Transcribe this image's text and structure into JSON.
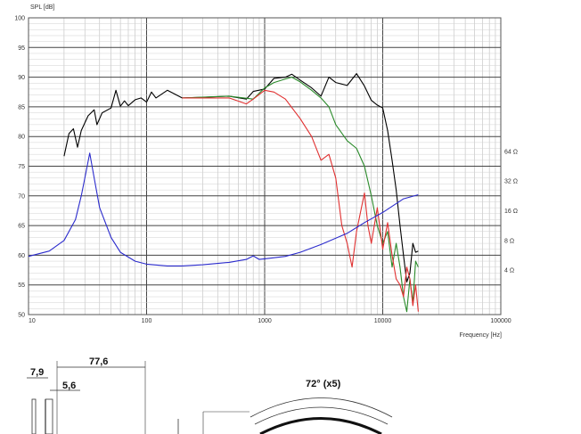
{
  "chart_data": {
    "type": "line",
    "title": "",
    "xlabel": "Frequency [Hz]",
    "ylabel": "SPL [dB]",
    "x_scale": "log",
    "xlim": [
      10,
      100000
    ],
    "ylim": [
      50,
      100
    ],
    "grid": true,
    "x_tick_labels": [
      "10",
      "100",
      "1000",
      "10000",
      "100000"
    ],
    "x_tick_values": [
      10,
      100,
      1000,
      10000,
      100000
    ],
    "y_tick_values": [
      50,
      55,
      60,
      65,
      70,
      75,
      80,
      85,
      90,
      95,
      100
    ],
    "y_tick_labels": [
      "50",
      "55",
      "60",
      "65",
      "70",
      "75",
      "80",
      "85",
      "90",
      "95",
      "100"
    ],
    "right_axis": {
      "label_values": [
        4,
        8,
        16,
        32,
        64
      ],
      "labels": [
        "4 Ω",
        "8 Ω",
        "16 Ω",
        "32 Ω",
        "64 Ω"
      ]
    },
    "series": [
      {
        "color": "#000000",
        "points": [
          [
            20,
            76.7
          ],
          [
            22,
            80.5
          ],
          [
            24,
            81.3
          ],
          [
            26,
            78.2
          ],
          [
            28,
            81
          ],
          [
            32,
            83.5
          ],
          [
            36,
            84.5
          ],
          [
            38,
            82
          ],
          [
            42,
            84
          ],
          [
            50,
            84.8
          ],
          [
            55,
            87.8
          ],
          [
            60,
            85.1
          ],
          [
            65,
            86
          ],
          [
            70,
            85.2
          ],
          [
            80,
            86.2
          ],
          [
            90,
            86.5
          ],
          [
            100,
            85.8
          ],
          [
            110,
            87.5
          ],
          [
            120,
            86.5
          ],
          [
            150,
            87.8
          ],
          [
            200,
            86.5
          ],
          [
            300,
            86.6
          ],
          [
            500,
            86.8
          ],
          [
            700,
            86.3
          ],
          [
            800,
            87.6
          ],
          [
            1000,
            88
          ],
          [
            1200,
            89.8
          ],
          [
            1500,
            90
          ],
          [
            1700,
            90.5
          ],
          [
            2000,
            89.5
          ],
          [
            2500,
            88.2
          ],
          [
            3000,
            86.8
          ],
          [
            3500,
            90
          ],
          [
            4000,
            89.1
          ],
          [
            5000,
            88.6
          ],
          [
            6000,
            90.6
          ],
          [
            7000,
            88.5
          ],
          [
            8000,
            86.1
          ],
          [
            9000,
            85.3
          ],
          [
            10000,
            84.8
          ],
          [
            11000,
            81
          ],
          [
            12000,
            76
          ],
          [
            13000,
            71
          ],
          [
            14000,
            65
          ],
          [
            15000,
            60
          ],
          [
            16000,
            55.5
          ],
          [
            17000,
            57
          ],
          [
            18000,
            62
          ],
          [
            19000,
            60.5
          ],
          [
            20000,
            60.7
          ]
        ]
      },
      {
        "color": "#2a8a2a",
        "points": [
          [
            200,
            86.5
          ],
          [
            500,
            86.8
          ],
          [
            800,
            86.3
          ],
          [
            1000,
            88.2
          ],
          [
            1200,
            89.1
          ],
          [
            1500,
            89.7
          ],
          [
            1700,
            90
          ],
          [
            2000,
            89.2
          ],
          [
            2500,
            87.8
          ],
          [
            3000,
            86.5
          ],
          [
            3500,
            85
          ],
          [
            4000,
            82
          ],
          [
            5000,
            79.3
          ],
          [
            6000,
            78
          ],
          [
            7000,
            75
          ],
          [
            8000,
            70
          ],
          [
            9000,
            65
          ],
          [
            10000,
            62
          ],
          [
            11000,
            64
          ],
          [
            12000,
            58
          ],
          [
            13000,
            62
          ],
          [
            14000,
            58
          ],
          [
            15000,
            53
          ],
          [
            16000,
            50.5
          ],
          [
            17000,
            56
          ],
          [
            18000,
            52
          ],
          [
            19000,
            59
          ],
          [
            20000,
            58
          ]
        ]
      },
      {
        "color": "#e03030",
        "points": [
          [
            200,
            86.5
          ],
          [
            500,
            86.5
          ],
          [
            700,
            85.5
          ],
          [
            800,
            86.3
          ],
          [
            1000,
            87.8
          ],
          [
            1200,
            87.5
          ],
          [
            1500,
            86.3
          ],
          [
            2000,
            83
          ],
          [
            2500,
            80
          ],
          [
            3000,
            76
          ],
          [
            3500,
            77
          ],
          [
            4000,
            73
          ],
          [
            4500,
            65
          ],
          [
            5000,
            62
          ],
          [
            5500,
            58
          ],
          [
            6000,
            64
          ],
          [
            7000,
            70.5
          ],
          [
            7500,
            65
          ],
          [
            8000,
            62
          ],
          [
            9000,
            68
          ],
          [
            10000,
            61
          ],
          [
            11000,
            65.5
          ],
          [
            12000,
            60
          ],
          [
            13000,
            56
          ],
          [
            14000,
            55
          ],
          [
            15000,
            53
          ],
          [
            16000,
            58
          ],
          [
            17000,
            56
          ],
          [
            18000,
            51.5
          ],
          [
            19000,
            55
          ],
          [
            20000,
            50.5
          ]
        ]
      },
      {
        "color": "#2a2acc",
        "points": [
          [
            10,
            59.8
          ],
          [
            15,
            60.7
          ],
          [
            20,
            62.5
          ],
          [
            25,
            66
          ],
          [
            28,
            70
          ],
          [
            30,
            73
          ],
          [
            33,
            77.2
          ],
          [
            36,
            73
          ],
          [
            40,
            68
          ],
          [
            50,
            63
          ],
          [
            60,
            60.5
          ],
          [
            80,
            59
          ],
          [
            100,
            58.5
          ],
          [
            150,
            58.2
          ],
          [
            200,
            58.2
          ],
          [
            300,
            58.4
          ],
          [
            500,
            58.8
          ],
          [
            700,
            59.3
          ],
          [
            800,
            59.9
          ],
          [
            900,
            59.3
          ],
          [
            1000,
            59.4
          ],
          [
            1500,
            59.8
          ],
          [
            2000,
            60.5
          ],
          [
            3000,
            61.8
          ],
          [
            5000,
            63.7
          ],
          [
            7000,
            65.5
          ],
          [
            10000,
            67.2
          ],
          [
            15000,
            69.5
          ],
          [
            20000,
            70.2
          ]
        ]
      }
    ]
  },
  "drawing": {
    "dim_77_6": "77,6",
    "dim_7_9": "7,9",
    "dim_5_6": "5,6",
    "angle_label": "72° (x5)"
  }
}
